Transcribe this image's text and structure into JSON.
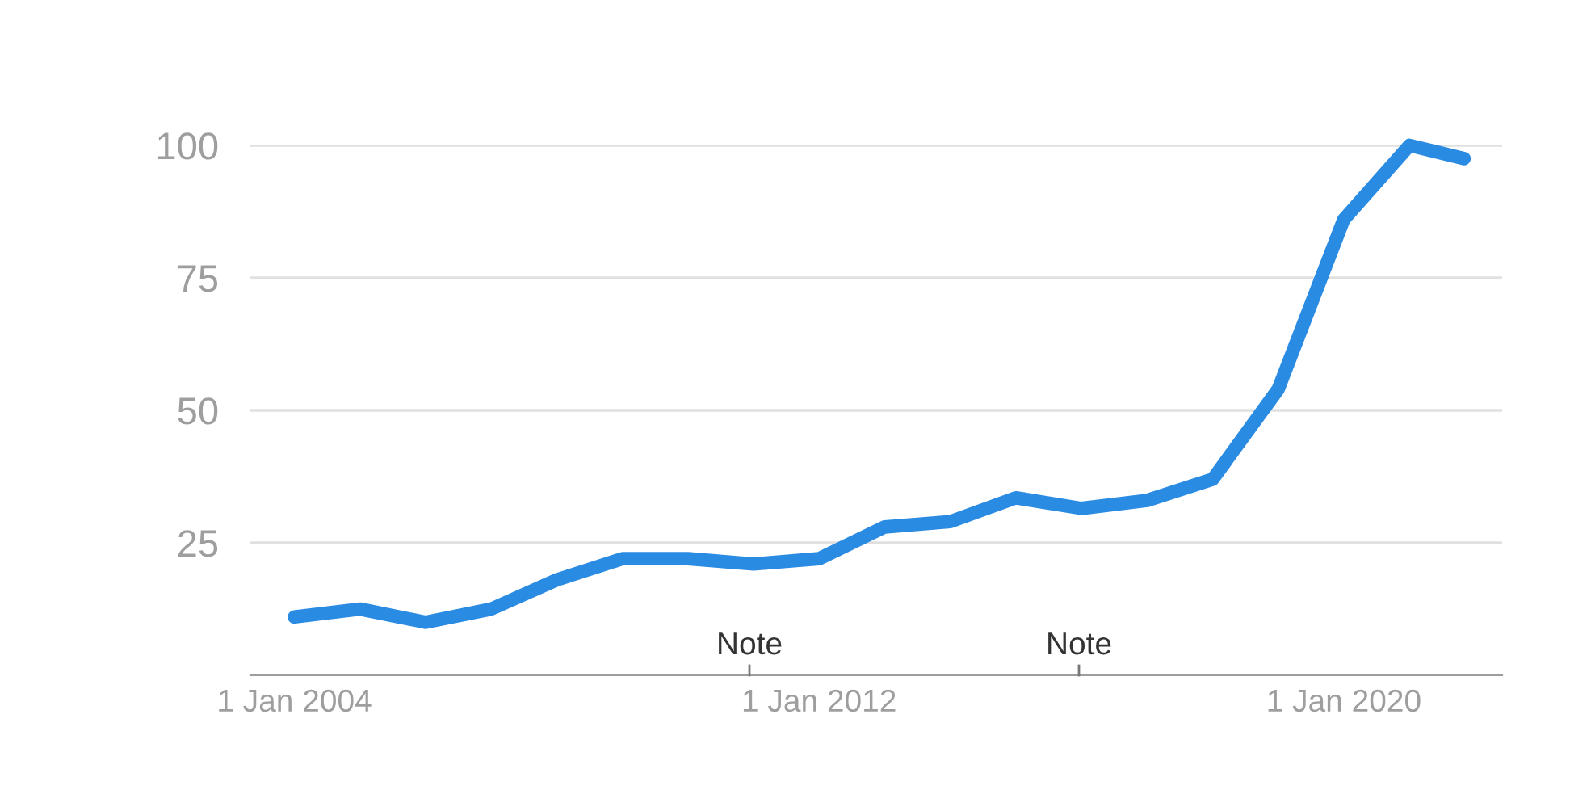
{
  "chart_data": {
    "type": "line",
    "x": [
      "2004",
      "2005",
      "2006",
      "2007",
      "2008",
      "2009",
      "2010",
      "2011",
      "2012",
      "2013",
      "2014",
      "2015",
      "2016",
      "2017",
      "2018",
      "2019",
      "2020",
      "2021",
      "2021-11"
    ],
    "series": [
      {
        "color": "#2a8be3",
        "values": [
          11,
          12.5,
          10,
          12.5,
          18,
          22,
          22,
          21,
          22,
          28,
          29,
          33.5,
          31.5,
          33,
          37,
          54,
          86,
          100,
          97.5
        ]
      }
    ],
    "xlim": [
      "2003-05",
      "2022-06"
    ],
    "xticks": [
      {
        "value": "2004",
        "label": "1 Jan 2004"
      },
      {
        "value": "2012",
        "label": "1 Jan 2012"
      },
      {
        "value": "2020",
        "label": "1 Jan 2020"
      }
    ],
    "ylim": [
      0,
      100
    ],
    "yticks": [
      {
        "value": 25,
        "label": "25"
      },
      {
        "value": 50,
        "label": "50"
      },
      {
        "value": 75,
        "label": "75"
      },
      {
        "value": 100,
        "label": "100"
      }
    ],
    "grid": "y",
    "annotations": [
      "Note",
      "Note"
    ]
  }
}
